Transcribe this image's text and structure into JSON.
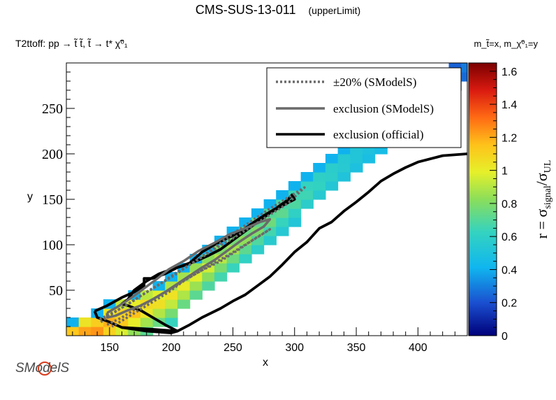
{
  "title": "CMS-SUS-13-011",
  "title_suffix": "(upperLimit)",
  "process_label": "T2ttoff: pp → t̃ t̃, t̃ → t* χ̃⁰₁",
  "mass_label": "m_t̃=x, m_χ̃⁰₁=y",
  "logo_text": "SModelS",
  "colors": {
    "official": "#000000",
    "smodels": "#6a6a6a"
  },
  "chart_data": {
    "type": "heatmap",
    "xlabel": "x",
    "ylabel": "y",
    "xlim": [
      115,
      440
    ],
    "ylim": [
      0,
      300
    ],
    "x_ticks": [
      150,
      200,
      250,
      300,
      350,
      400
    ],
    "y_ticks": [
      50,
      100,
      150,
      200,
      250
    ],
    "colorbar": {
      "label": "r = σ_signal/σ_UL",
      "range": [
        0,
        1.65
      ],
      "ticks": [
        0,
        0.2,
        0.4,
        0.6,
        0.8,
        1,
        1.2,
        1.4,
        1.6
      ],
      "colormap": "rainbow"
    },
    "legend": {
      "position": "top-right",
      "entries": [
        {
          "label": "±20% (SModelS)",
          "style": "dotted-gray"
        },
        {
          "label": "exclusion (SModelS)",
          "style": "solid-gray"
        },
        {
          "label": "exclusion (official)",
          "style": "solid-black"
        }
      ]
    },
    "heatmap_band": {
      "cell_x": 10,
      "cell_y": 10,
      "ridge": [
        [
          115,
          10
        ],
        [
          200,
          60
        ],
        [
          300,
          160
        ],
        [
          440,
          300
        ]
      ],
      "half_width_low_x": 55,
      "half_width_high_x": 20,
      "peak_value": 1.35,
      "edge_value": 0.45
    },
    "series": [
      {
        "name": "exclusion (official)",
        "points": [
          [
            138,
            27
          ],
          [
            148,
            33
          ],
          [
            160,
            42
          ],
          [
            170,
            48
          ],
          [
            178,
            55
          ],
          [
            178,
            63
          ],
          [
            185,
            63
          ],
          [
            195,
            68
          ],
          [
            205,
            75
          ],
          [
            215,
            80
          ],
          [
            225,
            92
          ],
          [
            235,
            100
          ],
          [
            245,
            107
          ],
          [
            255,
            113
          ],
          [
            265,
            123
          ],
          [
            275,
            132
          ],
          [
            285,
            140
          ],
          [
            295,
            150
          ],
          [
            298,
            155
          ],
          [
            300,
            150
          ],
          [
            290,
            143
          ],
          [
            280,
            135
          ],
          [
            270,
            125
          ],
          [
            260,
            115
          ],
          [
            250,
            105
          ],
          [
            240,
            95
          ],
          [
            230,
            88
          ],
          [
            220,
            82
          ],
          [
            210,
            77
          ],
          [
            200,
            73
          ],
          [
            190,
            68
          ],
          [
            180,
            60
          ],
          [
            170,
            50
          ],
          [
            165,
            40
          ],
          [
            160,
            35
          ],
          [
            165,
            33
          ],
          [
            175,
            28
          ],
          [
            185,
            20
          ],
          [
            195,
            12
          ],
          [
            205,
            5
          ],
          [
            200,
            3
          ],
          [
            180,
            5
          ],
          [
            160,
            9
          ],
          [
            150,
            15
          ],
          [
            140,
            20
          ],
          [
            138,
            27
          ]
        ]
      },
      {
        "name": "exclusion (official)",
        "points": [
          [
            160,
            9
          ],
          [
            185,
            7
          ],
          [
            205,
            5
          ],
          [
            215,
            12
          ],
          [
            225,
            20
          ],
          [
            240,
            30
          ],
          [
            250,
            38
          ],
          [
            260,
            45
          ],
          [
            270,
            55
          ],
          [
            280,
            65
          ],
          [
            290,
            78
          ],
          [
            300,
            92
          ],
          [
            310,
            103
          ],
          [
            320,
            118
          ],
          [
            330,
            125
          ],
          [
            340,
            137
          ],
          [
            350,
            147
          ],
          [
            360,
            158
          ],
          [
            370,
            170
          ],
          [
            380,
            178
          ],
          [
            390,
            185
          ],
          [
            400,
            191
          ],
          [
            420,
            198
          ],
          [
            440,
            200
          ]
        ]
      },
      {
        "name": "exclusion (SModelS)",
        "points": [
          [
            148,
            25
          ],
          [
            158,
            33
          ],
          [
            168,
            42
          ],
          [
            178,
            52
          ],
          [
            188,
            62
          ],
          [
            198,
            73
          ],
          [
            210,
            82
          ],
          [
            222,
            93
          ],
          [
            235,
            102
          ],
          [
            248,
            112
          ],
          [
            260,
            118
          ],
          [
            272,
            125
          ],
          [
            280,
            128
          ],
          [
            275,
            120
          ],
          [
            265,
            112
          ],
          [
            255,
            103
          ],
          [
            245,
            93
          ],
          [
            235,
            83
          ],
          [
            225,
            75
          ],
          [
            215,
            66
          ],
          [
            205,
            57
          ],
          [
            195,
            48
          ],
          [
            185,
            40
          ],
          [
            175,
            33
          ],
          [
            165,
            28
          ],
          [
            155,
            22
          ],
          [
            148,
            20
          ],
          [
            148,
            25
          ]
        ]
      },
      {
        "name": "±20% (SModelS)",
        "points": [
          [
            142,
            18
          ],
          [
            155,
            27
          ],
          [
            168,
            37
          ],
          [
            180,
            48
          ],
          [
            192,
            58
          ],
          [
            205,
            70
          ],
          [
            220,
            82
          ],
          [
            235,
            95
          ],
          [
            250,
            107
          ],
          [
            265,
            120
          ],
          [
            280,
            133
          ],
          [
            295,
            146
          ],
          [
            308,
            163
          ],
          [
            302,
            158
          ],
          [
            290,
            148
          ],
          [
            278,
            138
          ],
          [
            265,
            126
          ],
          [
            252,
            114
          ],
          [
            240,
            102
          ],
          [
            228,
            90
          ],
          [
            215,
            78
          ],
          [
            202,
            66
          ],
          [
            190,
            56
          ],
          [
            178,
            46
          ],
          [
            165,
            35
          ],
          [
            152,
            24
          ],
          [
            142,
            14
          ]
        ]
      },
      {
        "name": "±20% (SModelS)",
        "points": [
          [
            148,
            12
          ],
          [
            160,
            20
          ],
          [
            172,
            30
          ],
          [
            185,
            40
          ],
          [
            198,
            50
          ],
          [
            212,
            62
          ],
          [
            225,
            72
          ],
          [
            240,
            82
          ],
          [
            255,
            95
          ],
          [
            268,
            107
          ],
          [
            280,
            117
          ],
          [
            272,
            110
          ],
          [
            260,
            100
          ],
          [
            248,
            90
          ],
          [
            235,
            80
          ],
          [
            222,
            70
          ],
          [
            210,
            60
          ],
          [
            198,
            48
          ],
          [
            186,
            38
          ],
          [
            174,
            28
          ],
          [
            162,
            18
          ],
          [
            152,
            10
          ]
        ]
      }
    ]
  }
}
